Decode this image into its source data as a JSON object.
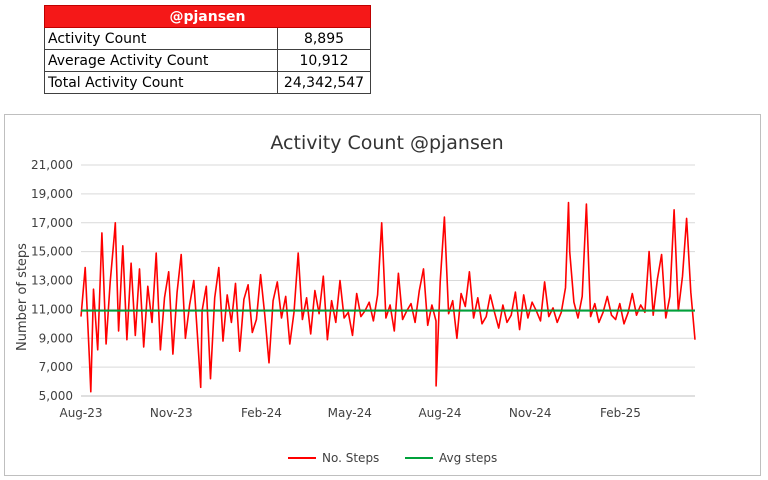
{
  "summary": {
    "title": "@pjansen",
    "rows": [
      {
        "label": "Activity Count",
        "value": "8,895"
      },
      {
        "label": "Average Activity Count",
        "value": "10,912"
      },
      {
        "label": "Total Activity Count",
        "value": "24,342,547"
      }
    ]
  },
  "chart_data": {
    "type": "line",
    "title": "Activity Count @pjansen",
    "xlabel": "",
    "ylabel": "Number of steps",
    "ylim": [
      5000,
      21000
    ],
    "yticks": [
      5000,
      7000,
      9000,
      11000,
      13000,
      15000,
      17000,
      19000,
      21000
    ],
    "ytick_labels": [
      "5,000",
      "7,000",
      "9,000",
      "11,000",
      "13,000",
      "15,000",
      "17,000",
      "19,000",
      "21,000"
    ],
    "x_start": "2023-08-01",
    "x_end": "2025-04-18",
    "xtick_labels": [
      "Aug-23",
      "Nov-23",
      "Feb-24",
      "May-24",
      "Aug-24",
      "Nov-24",
      "Feb-25"
    ],
    "xtick_dates": [
      "2023-08-01",
      "2023-11-01",
      "2024-02-01",
      "2024-05-01",
      "2024-08-01",
      "2024-11-01",
      "2025-02-01"
    ],
    "grid": "horizontal",
    "legend_position": "bottom",
    "series": [
      {
        "name": "No. Steps",
        "color": "#ff0000",
        "sampling": "every 5 days",
        "values": [
          10500,
          13900,
          7600,
          12400,
          8200,
          16300,
          8600,
          12900,
          16200,
          9500,
          15400,
          8900,
          14200,
          9200,
          13800,
          8400,
          12600,
          10100,
          14900,
          8200,
          11800,
          13600,
          7900,
          12200,
          14800,
          9000,
          11300,
          13000,
          8600,
          10900,
          12600,
          6200,
          11800,
          13900,
          8800,
          12000,
          10100,
          12800,
          8100,
          11700,
          12700,
          9400,
          10300,
          13400,
          10600,
          7300,
          11600,
          12900,
          10400,
          11900,
          8600,
          10800,
          14900,
          10300,
          11800,
          9300,
          12300,
          10700,
          13300,
          8900,
          11600,
          10100,
          13000,
          10400,
          10800,
          9200,
          12100,
          10500,
          10900,
          11500,
          10200,
          12000,
          17000,
          10400,
          11300,
          9500,
          13500,
          10300,
          10900,
          11400,
          10100,
          12300,
          13800,
          9900,
          11300,
          10200,
          12900,
          17400,
          10700,
          11600,
          9000,
          12100,
          11200,
          13600,
          10400,
          11800,
          10000,
          10500,
          12000,
          10800,
          9700,
          11300,
          10100,
          10600,
          12200,
          9600,
          12000,
          10400,
          11500,
          10900,
          10200,
          12900,
          10500,
          11100,
          10100,
          10800,
          12500,
          15000,
          11500,
          10400,
          11900,
          18300,
          10500,
          11400,
          10100,
          10800,
          11900,
          10600,
          10300,
          11400,
          10000,
          10800,
          12100,
          10600,
          11300,
          10800,
          15000,
          10600,
          13100,
          14800,
          10400,
          11900,
          17900,
          10900,
          13300,
          17300,
          12200,
          8900
        ],
        "markers": [
          {
            "date": "2023-08-11",
            "value": 5300
          },
          {
            "date": "2023-09-05",
            "value": 17000
          },
          {
            "date": "2023-12-01",
            "value": 5600
          },
          {
            "date": "2024-07-28",
            "value": 5700
          },
          {
            "date": "2024-12-10",
            "value": 18400
          }
        ]
      },
      {
        "name": "Avg steps",
        "color": "#00a13a",
        "constant": 10912
      }
    ]
  }
}
